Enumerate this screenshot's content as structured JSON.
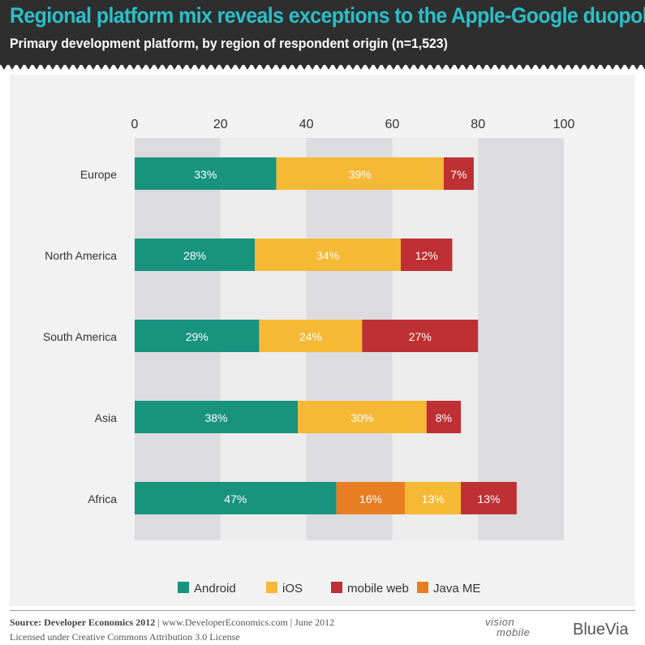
{
  "header": {
    "title": "Regional platform mix reveals exceptions to the Apple-Google duopoly",
    "subtitle": "Primary development platform, by region of respondent origin (n=1,523)"
  },
  "chart_data": {
    "type": "bar",
    "orientation": "horizontal",
    "stacked": true,
    "xlim": [
      0,
      100
    ],
    "xticks": [
      0,
      20,
      40,
      60,
      80,
      100
    ],
    "categories": [
      "Europe",
      "North America",
      "South America",
      "Asia",
      "Africa"
    ],
    "rows": [
      {
        "category": "Europe",
        "segments": [
          {
            "series": "Android",
            "value": 33,
            "label": "33%"
          },
          {
            "series": "iOS",
            "value": 39,
            "label": "39%"
          },
          {
            "series": "mobile web",
            "value": 7,
            "label": "7%"
          }
        ]
      },
      {
        "category": "North America",
        "segments": [
          {
            "series": "Android",
            "value": 28,
            "label": "28%"
          },
          {
            "series": "iOS",
            "value": 34,
            "label": "34%"
          },
          {
            "series": "mobile web",
            "value": 12,
            "label": "12%"
          }
        ]
      },
      {
        "category": "South America",
        "segments": [
          {
            "series": "Android",
            "value": 29,
            "label": "29%"
          },
          {
            "series": "iOS",
            "value": 24,
            "label": "24%"
          },
          {
            "series": "mobile web",
            "value": 27,
            "label": "27%"
          }
        ]
      },
      {
        "category": "Asia",
        "segments": [
          {
            "series": "Android",
            "value": 38,
            "label": "38%"
          },
          {
            "series": "iOS",
            "value": 30,
            "label": "30%"
          },
          {
            "series": "mobile web",
            "value": 8,
            "label": "8%"
          }
        ]
      },
      {
        "category": "Africa",
        "segments": [
          {
            "series": "Android",
            "value": 47,
            "label": "47%"
          },
          {
            "series": "Java ME",
            "value": 16,
            "label": "16%"
          },
          {
            "series": "iOS",
            "value": 13,
            "label": "13%"
          },
          {
            "series": "mobile web",
            "value": 13,
            "label": "13%"
          }
        ]
      }
    ],
    "legend": [
      {
        "name": "Android",
        "color": "#17937e"
      },
      {
        "name": "iOS",
        "color": "#f6b935"
      },
      {
        "name": "mobile web",
        "color": "#be3033"
      },
      {
        "name": "Java ME",
        "color": "#e87e22"
      }
    ],
    "legend_position": "bottom"
  },
  "footer": {
    "source_label": "Source: Developer Economics 2012",
    "source_rest": "| www.DeveloperEconomics.com | June 2012",
    "license": "Licensed under Creative Commons Attribution 3.0 License"
  },
  "logos": {
    "vision_line1": "vision",
    "vision_line2": "mobile",
    "bluevia": "BlueVia"
  }
}
